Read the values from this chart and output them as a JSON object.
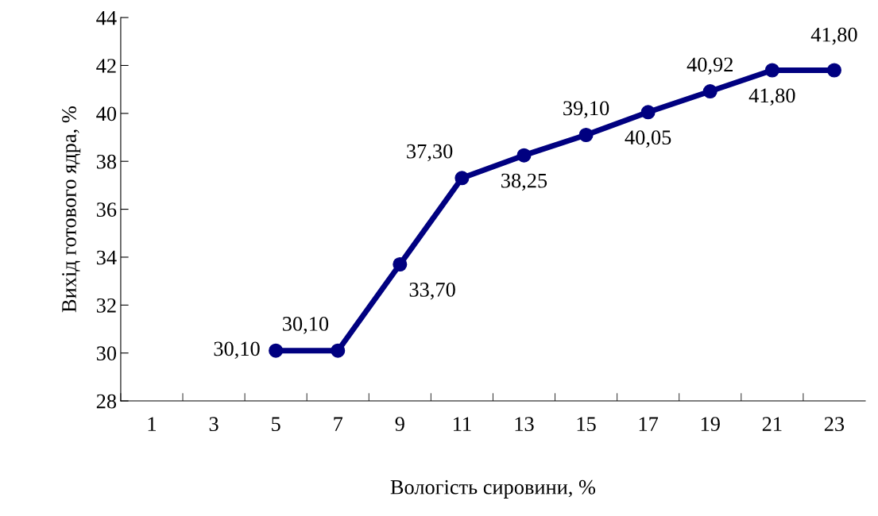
{
  "chart_data": {
    "type": "line",
    "xlabel": "Вологість сировини, %",
    "ylabel": "Вихід готового ядра, %",
    "categories": [
      "1",
      "3",
      "5",
      "7",
      "9",
      "11",
      "13",
      "15",
      "17",
      "19",
      "21",
      "23"
    ],
    "series": [
      {
        "color": "#000080",
        "values": [
          null,
          null,
          30.1,
          30.1,
          33.7,
          37.3,
          38.25,
          39.1,
          40.05,
          40.92,
          41.8,
          41.8
        ],
        "value_labels": [
          null,
          null,
          "30,10",
          "30,10",
          "33,70",
          "37,30",
          "38,25",
          "39,10",
          "40,05",
          "40,92",
          "41,80",
          "41,80"
        ]
      }
    ],
    "ylim": [
      28,
      44
    ],
    "yticks": [
      28,
      30,
      32,
      34,
      36,
      38,
      40,
      42,
      44
    ],
    "grid": false,
    "legend": false,
    "marker": "circle",
    "line_style": "solid"
  }
}
